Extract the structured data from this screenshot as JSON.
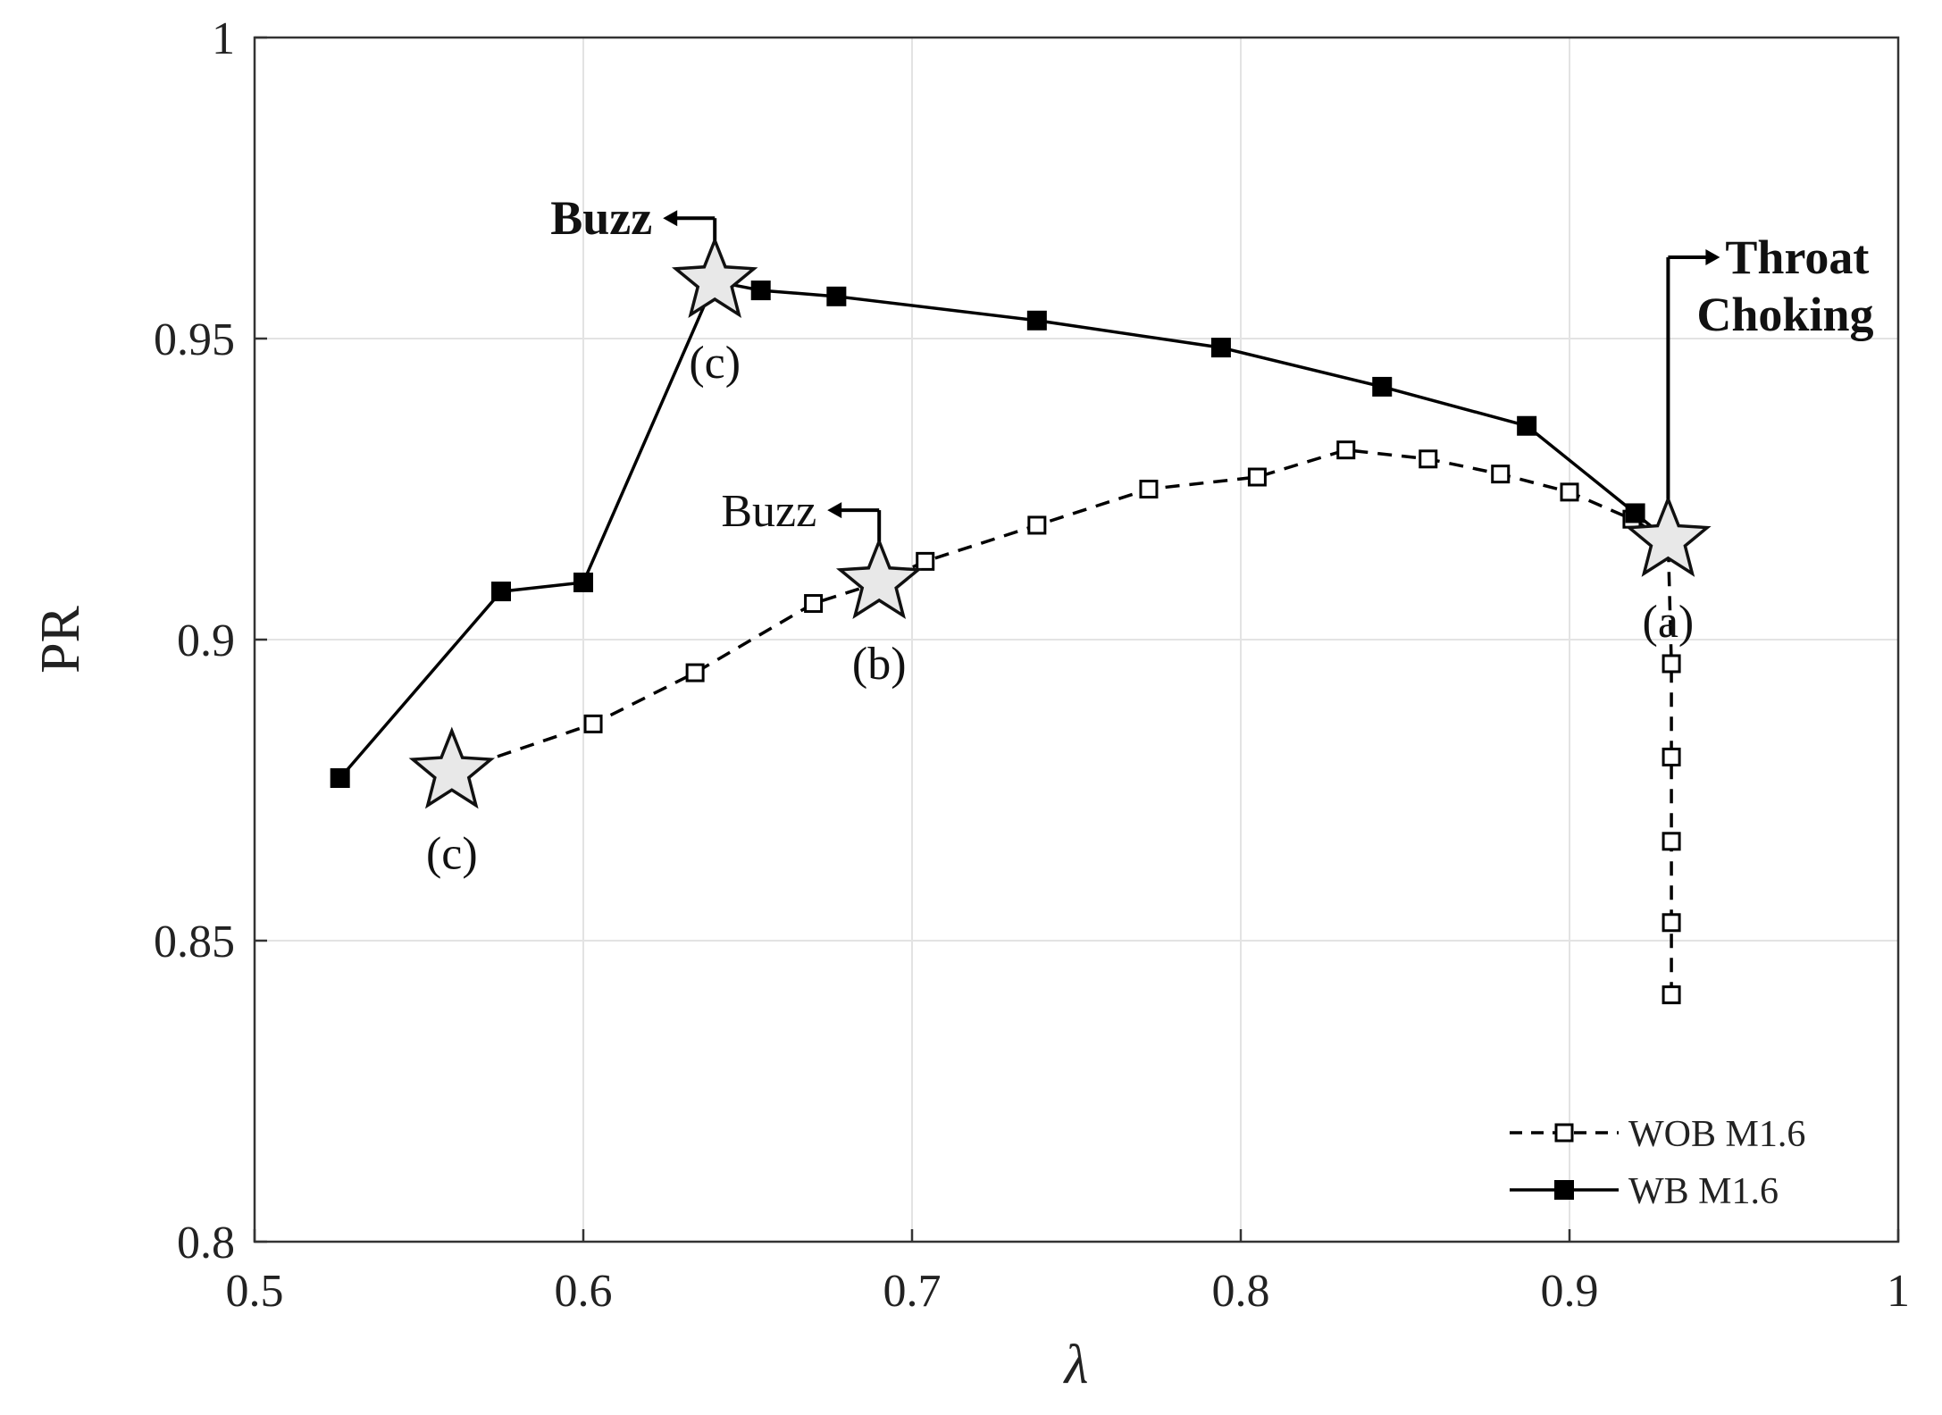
{
  "chart_data": {
    "type": "line",
    "xlabel": "λ",
    "ylabel": "PR",
    "xlim": [
      0.5,
      1.0
    ],
    "ylim": [
      0.8,
      1.0
    ],
    "grid": true,
    "xticks": [
      {
        "value": 0.5,
        "label": "0.5"
      },
      {
        "value": 0.6,
        "label": "0.6"
      },
      {
        "value": 0.7,
        "label": "0.7"
      },
      {
        "value": 0.8,
        "label": "0.8"
      },
      {
        "value": 0.9,
        "label": "0.9"
      },
      {
        "value": 1.0,
        "label": "1"
      }
    ],
    "yticks": [
      {
        "value": 0.8,
        "label": "0.8"
      },
      {
        "value": 0.85,
        "label": "0.85"
      },
      {
        "value": 0.9,
        "label": "0.9"
      },
      {
        "value": 0.95,
        "label": "0.95"
      },
      {
        "value": 1.0,
        "label": "1"
      }
    ],
    "legend_position": "bottom-right",
    "series": [
      {
        "name": "WOB M1.6",
        "style": "dashed",
        "marker": "open-square",
        "color": "#000000",
        "points": [
          [
            0.56,
            0.878
          ],
          [
            0.603,
            0.886
          ],
          [
            0.634,
            0.8945
          ],
          [
            0.67,
            0.906
          ],
          [
            0.69,
            0.9095
          ],
          [
            0.704,
            0.913
          ],
          [
            0.738,
            0.919
          ],
          [
            0.772,
            0.925
          ],
          [
            0.805,
            0.927
          ],
          [
            0.832,
            0.9315
          ],
          [
            0.857,
            0.93
          ],
          [
            0.879,
            0.9275
          ],
          [
            0.9,
            0.9245
          ],
          [
            0.919,
            0.92
          ],
          [
            0.93,
            0.9165
          ],
          [
            0.931,
            0.896
          ],
          [
            0.931,
            0.8805
          ],
          [
            0.931,
            0.8665
          ],
          [
            0.931,
            0.853
          ],
          [
            0.931,
            0.841
          ]
        ]
      },
      {
        "name": "WB M1.6",
        "style": "solid",
        "marker": "filled-square",
        "color": "#000000",
        "points": [
          [
            0.526,
            0.877
          ],
          [
            0.575,
            0.908
          ],
          [
            0.6,
            0.9095
          ],
          [
            0.64,
            0.9595
          ],
          [
            0.654,
            0.958
          ],
          [
            0.677,
            0.957
          ],
          [
            0.738,
            0.953
          ],
          [
            0.794,
            0.9485
          ],
          [
            0.843,
            0.942
          ],
          [
            0.887,
            0.9355
          ],
          [
            0.92,
            0.921
          ],
          [
            0.93,
            0.9165
          ]
        ]
      }
    ],
    "highlighted_points": [
      {
        "label": "(a)",
        "x": 0.93,
        "y": 0.9165,
        "label_pos": "below"
      },
      {
        "label": "(b)",
        "x": 0.69,
        "y": 0.9095,
        "label_pos": "below"
      },
      {
        "label": "(c)",
        "x": 0.56,
        "y": 0.878,
        "label_pos": "below"
      },
      {
        "label": "(c)",
        "x": 0.64,
        "y": 0.9595,
        "label_pos": "below"
      }
    ],
    "annotations": [
      {
        "text": "Buzz",
        "bold": true,
        "x": 0.64,
        "y": 0.9595,
        "arrow": "left",
        "stem_to_y": 0.97
      },
      {
        "text": "Buzz",
        "bold": false,
        "x": 0.69,
        "y": 0.9095,
        "arrow": "left",
        "stem_to_y": 0.9215
      },
      {
        "text": "Throat",
        "text2": "Choking",
        "bold": true,
        "x": 0.93,
        "y": 0.9165,
        "arrow": "right",
        "stem_to_y": 0.9635
      }
    ]
  }
}
